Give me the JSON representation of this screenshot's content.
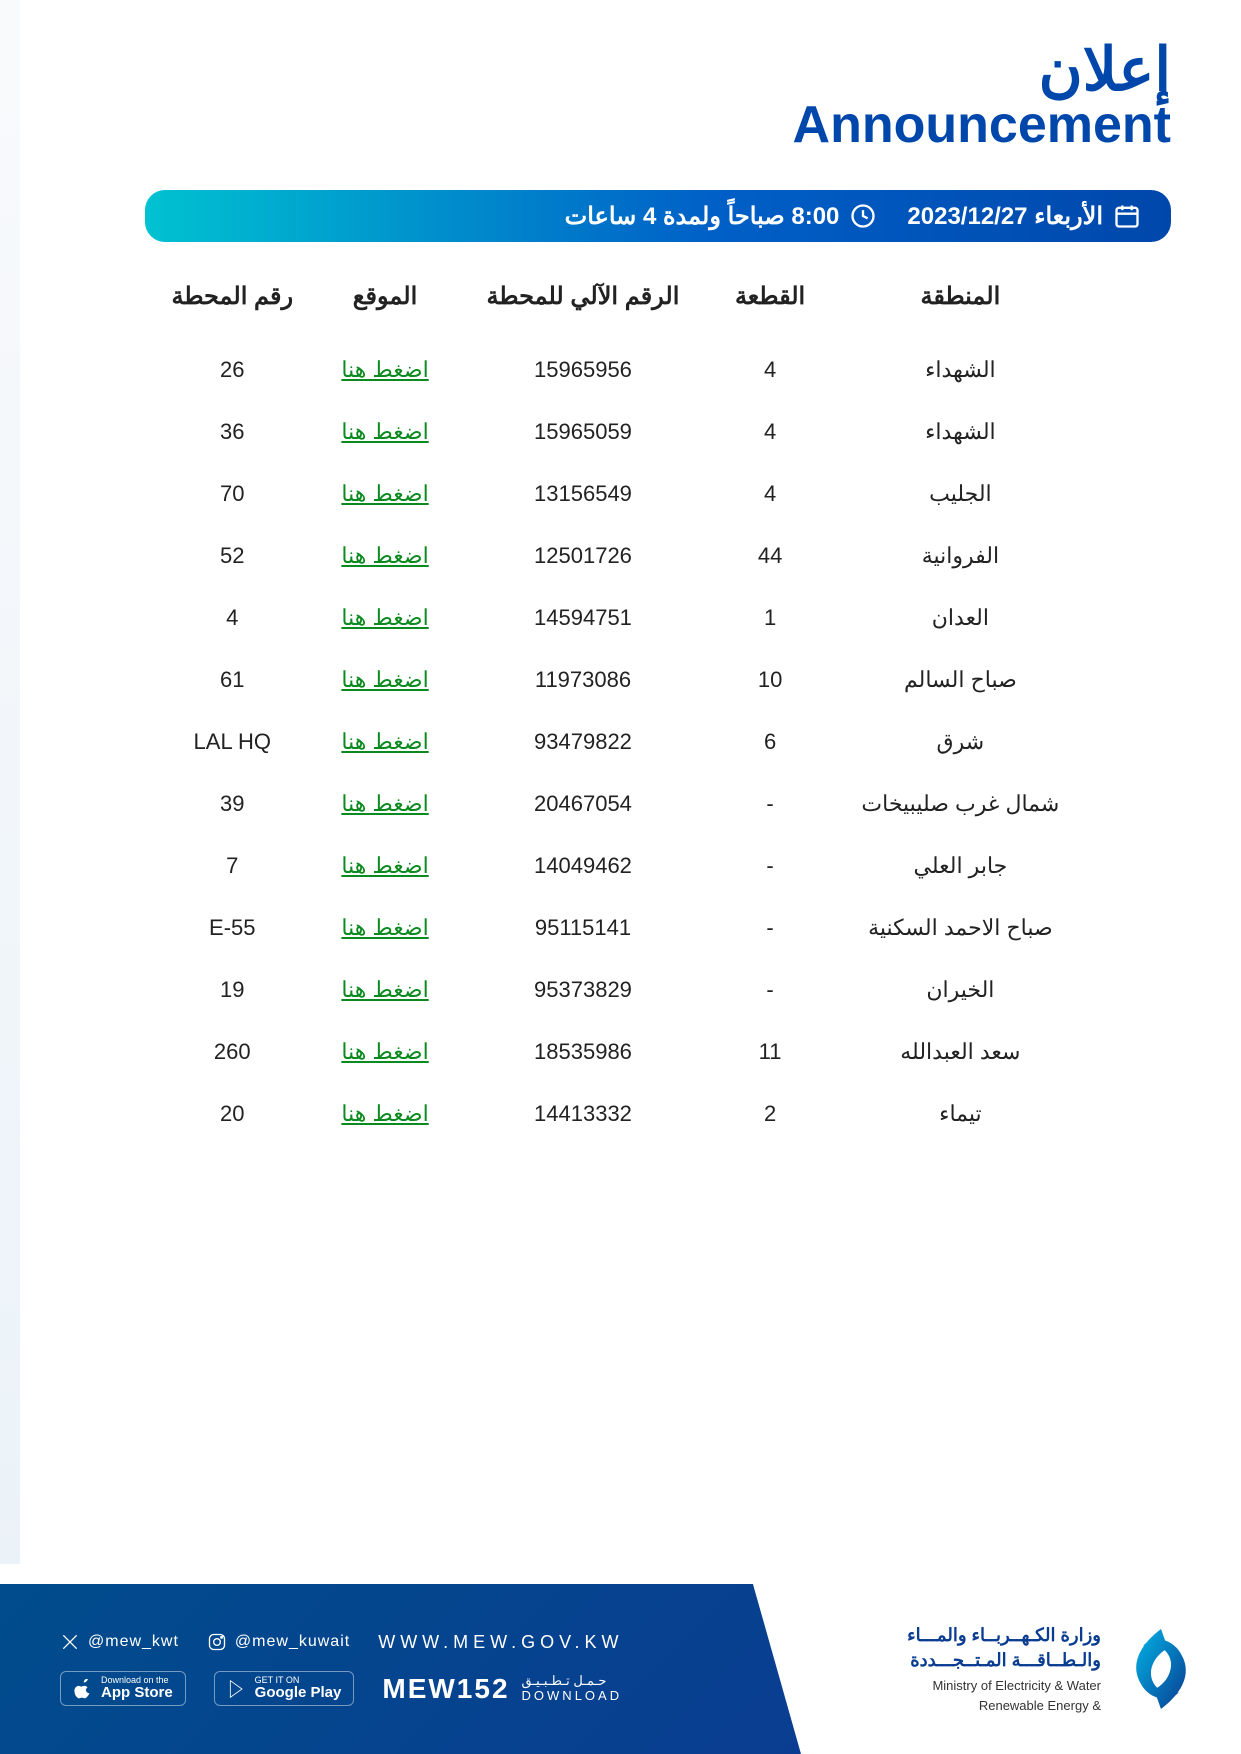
{
  "header": {
    "title_ar": "إعلان",
    "title_en": "Announcement"
  },
  "banner": {
    "date_label": "الأربعاء 2023/12/27",
    "time_label": "8:00 صباحاً ولمدة 4 ساعات"
  },
  "table": {
    "columns": {
      "area": "المنطقة",
      "block": "القطعة",
      "station_code": "الرقم الآلي للمحطة",
      "location": "الموقع",
      "station_no": "رقم المحطة"
    },
    "link_text": "اضغط هنا",
    "rows": [
      {
        "area": "الشهداء",
        "block": "4",
        "code": "15965956",
        "station": "26"
      },
      {
        "area": "الشهداء",
        "block": "4",
        "code": "15965059",
        "station": "36"
      },
      {
        "area": "الجليب",
        "block": "4",
        "code": "13156549",
        "station": "70"
      },
      {
        "area": "الفروانية",
        "block": "44",
        "code": "12501726",
        "station": "52"
      },
      {
        "area": "العدان",
        "block": "1",
        "code": "14594751",
        "station": "4"
      },
      {
        "area": "صباح السالم",
        "block": "10",
        "code": "11973086",
        "station": "61"
      },
      {
        "area": "شرق",
        "block": "6",
        "code": "93479822",
        "station": "LAL HQ"
      },
      {
        "area": "شمال غرب صليبيخات",
        "block": "-",
        "code": "20467054",
        "station": "39"
      },
      {
        "area": "جابر العلي",
        "block": "-",
        "code": "14049462",
        "station": "7"
      },
      {
        "area": "صباح الاحمد السكنية",
        "block": "-",
        "code": "95115141",
        "station": "E-55"
      },
      {
        "area": "الخيران",
        "block": "-",
        "code": "95373829",
        "station": "19"
      },
      {
        "area": "سعد العبدالله",
        "block": "11",
        "code": "18535986",
        "station": "260"
      },
      {
        "area": "تيماء",
        "block": "2",
        "code": "14413332",
        "station": "20"
      }
    ]
  },
  "footer": {
    "social_x": "@mew_kwt",
    "social_ig": "@mew_kuwait",
    "website": "WWW.MEW.GOV.KW",
    "appstore_small": "Download on the",
    "appstore_big": "App Store",
    "play_small": "GET IT ON",
    "play_big": "Google Play",
    "mew_app": "MEW152",
    "download_ar": "حـمـل تـطـبـيـق",
    "download_en": "DOWNLOAD",
    "ministry_ar_1": "وزارة الكـهــربــاء والمـــاء",
    "ministry_ar_2": "والـطــاقـــة المـتــجـــددة",
    "ministry_en_1": "Ministry of Electricity & Water",
    "ministry_en_2": "& Renewable Energy"
  },
  "styling": {
    "brand_blue": "#0047ab",
    "link_green": "#0a8a1f",
    "banner_gradient_start": "#00c2d1",
    "banner_gradient_end": "#0047ab",
    "footer_bg": "#0a3d91",
    "body_bg": "#ffffff",
    "header_ar_fontsize": 60,
    "header_en_fontsize": 52,
    "banner_fontsize": 24,
    "th_fontsize": 24,
    "td_fontsize": 22
  }
}
